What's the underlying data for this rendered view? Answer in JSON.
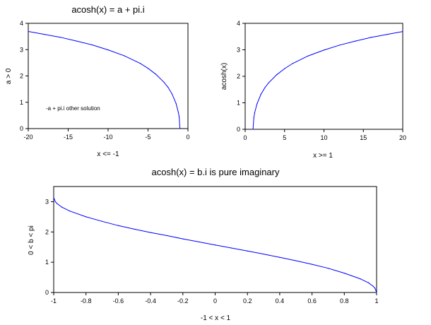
{
  "chart_data": [
    {
      "type": "line",
      "title": "acosh(x) = a + pi.i",
      "xlabel": "x <= -1",
      "ylabel": "a > 0",
      "xlim": [
        -20,
        0
      ],
      "ylim": [
        0,
        4
      ],
      "xticks": [
        -20,
        -15,
        -10,
        -5,
        0
      ],
      "yticks": [
        0,
        1,
        2,
        3,
        4
      ],
      "annotation": "-a + pi.i other solution",
      "series": [
        {
          "color": "#0000ff",
          "x": [
            -20,
            -18,
            -16,
            -14,
            -12,
            -10,
            -8,
            -6,
            -5,
            -4,
            -3,
            -2.5,
            -2,
            -1.5,
            -1.2,
            -1.1,
            -1
          ],
          "y": [
            3.69,
            3.58,
            3.47,
            3.33,
            3.18,
            2.99,
            2.77,
            2.48,
            2.29,
            2.06,
            1.76,
            1.57,
            1.32,
            0.96,
            0.62,
            0.44,
            0
          ]
        }
      ]
    },
    {
      "type": "line",
      "title": "",
      "xlabel": "x >= 1",
      "ylabel": "acosh(x)",
      "xlim": [
        0,
        20
      ],
      "ylim": [
        0,
        4
      ],
      "xticks": [
        0,
        5,
        10,
        15,
        20
      ],
      "yticks": [
        0,
        1,
        2,
        3,
        4
      ],
      "series": [
        {
          "color": "#0000ff",
          "x": [
            1,
            1.1,
            1.2,
            1.5,
            2,
            2.5,
            3,
            4,
            5,
            6,
            8,
            10,
            12,
            14,
            16,
            18,
            20
          ],
          "y": [
            0,
            0.44,
            0.62,
            0.96,
            1.32,
            1.57,
            1.76,
            2.06,
            2.29,
            2.48,
            2.77,
            2.99,
            3.18,
            3.33,
            3.47,
            3.58,
            3.69
          ]
        }
      ]
    },
    {
      "type": "line",
      "title": "acosh(x) = b.i  is pure imaginary",
      "xlabel": "-1 < x < 1",
      "ylabel": "0 < b < pi",
      "xlim": [
        -1,
        1
      ],
      "ylim": [
        0,
        3.5
      ],
      "xticks": [
        "-1",
        "-0.8",
        "-0.6",
        "-0.4",
        "-0.2",
        "0",
        "0.2",
        "0.4",
        "0.6",
        "0.8",
        "1"
      ],
      "yticks": [
        0,
        1,
        2,
        3
      ],
      "series": [
        {
          "color": "#0000ff",
          "x": [
            -1,
            -0.99,
            -0.98,
            -0.95,
            -0.9,
            -0.8,
            -0.7,
            -0.6,
            -0.5,
            -0.4,
            -0.3,
            -0.2,
            -0.1,
            0,
            0.1,
            0.2,
            0.3,
            0.4,
            0.5,
            0.6,
            0.7,
            0.8,
            0.9,
            0.95,
            0.98,
            0.99,
            1
          ],
          "y": [
            3.14,
            3.0,
            2.94,
            2.82,
            2.69,
            2.5,
            2.35,
            2.21,
            2.09,
            1.98,
            1.88,
            1.77,
            1.67,
            1.57,
            1.47,
            1.37,
            1.27,
            1.16,
            1.05,
            0.93,
            0.8,
            0.64,
            0.45,
            0.32,
            0.2,
            0.14,
            0
          ]
        }
      ]
    }
  ]
}
